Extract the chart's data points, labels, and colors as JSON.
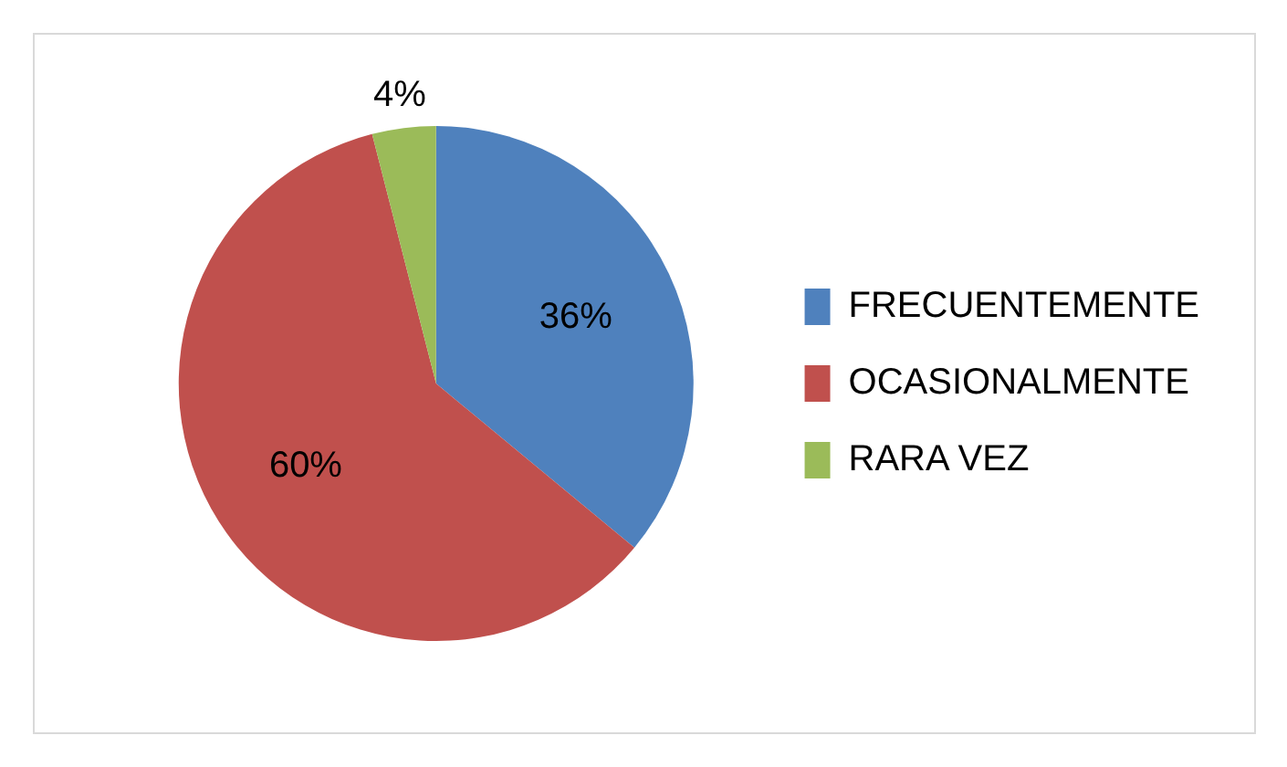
{
  "chart_data": {
    "type": "pie",
    "categories": [
      "FRECUENTEMENTE",
      "OCASIONALMENTE",
      "RARA VEZ"
    ],
    "values": [
      36,
      60,
      4
    ],
    "colors": [
      "#4f81bd",
      "#c0504d",
      "#9bbb59"
    ],
    "value_labels": [
      "36%",
      "60%",
      "4%"
    ],
    "legend": "right"
  }
}
